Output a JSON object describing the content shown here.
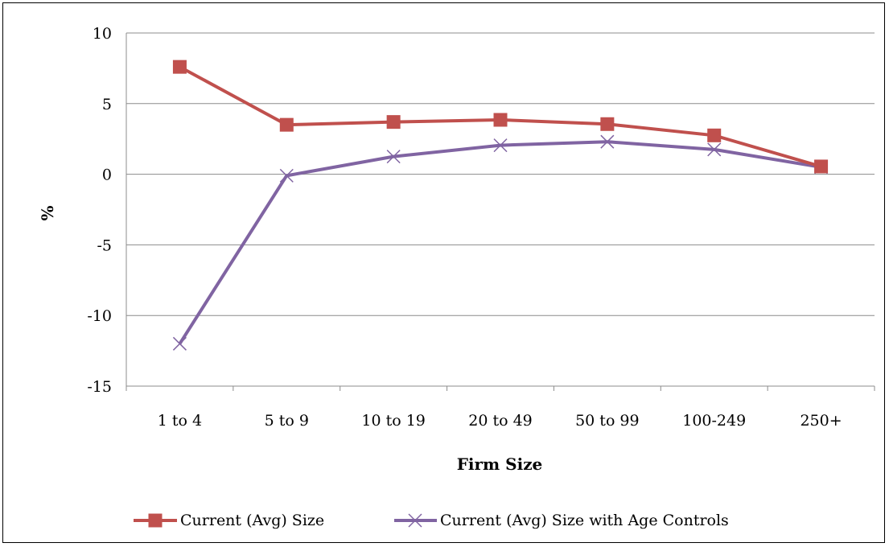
{
  "chart_data": {
    "type": "line",
    "categories": [
      "1 to 4",
      "5 to 9",
      "10 to 19",
      "20 to 49",
      "50 to 99",
      "100-249",
      "250+"
    ],
    "series": [
      {
        "name": "Current (Avg) Size",
        "values": [
          7.6,
          3.5,
          3.7,
          3.85,
          3.55,
          2.75,
          0.55
        ],
        "color": "#c0504d",
        "marker": "square"
      },
      {
        "name": "Current (Avg) Size with Age Controls",
        "values": [
          -12.0,
          -0.1,
          1.25,
          2.05,
          2.3,
          1.75,
          0.5
        ],
        "color": "#8064a2",
        "marker": "x"
      }
    ],
    "title": "",
    "xlabel": "Firm Size",
    "ylabel": "%",
    "ylim": [
      -15,
      10
    ],
    "yticks": [
      10,
      5,
      0,
      -5,
      -10,
      -15
    ],
    "grid": true,
    "legend_position": "bottom"
  }
}
